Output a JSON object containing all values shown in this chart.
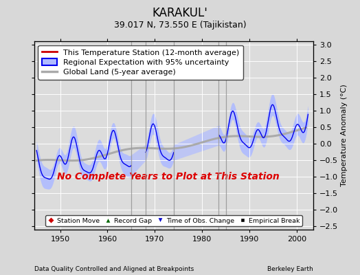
{
  "title": "KARAKUL'",
  "subtitle": "39.017 N, 73.550 E (Tajikistan)",
  "ylabel": "Temperature Anomaly (°C)",
  "xlabel_left": "Data Quality Controlled and Aligned at Breakpoints",
  "xlabel_right": "Berkeley Earth",
  "xlim": [
    1944.5,
    2003.5
  ],
  "ylim": [
    -2.6,
    3.1
  ],
  "yticks": [
    -2.5,
    -2,
    -1.5,
    -1,
    -0.5,
    0,
    0.5,
    1,
    1.5,
    2,
    2.5,
    3
  ],
  "xticks": [
    1950,
    1960,
    1970,
    1980,
    1990,
    2000
  ],
  "no_data_text": "No Complete Years to Plot at This Station",
  "no_data_color": "#dd0000",
  "background_color": "#d8d8d8",
  "plot_background": "#dcdcdc",
  "grid_color": "#ffffff",
  "regional_band_color": "#b0bcff",
  "regional_line_color": "#0000ee",
  "global_land_color": "#aaaaaa",
  "record_gap_positions": [
    1965.0,
    1968.0,
    1974.0,
    1983.5,
    1985.0
  ],
  "vert_line_positions": [
    1965.0,
    1968.0,
    1974.0,
    1983.5,
    1985.0
  ],
  "title_fontsize": 12,
  "subtitle_fontsize": 9,
  "legend_fontsize": 8,
  "axis_fontsize": 8
}
